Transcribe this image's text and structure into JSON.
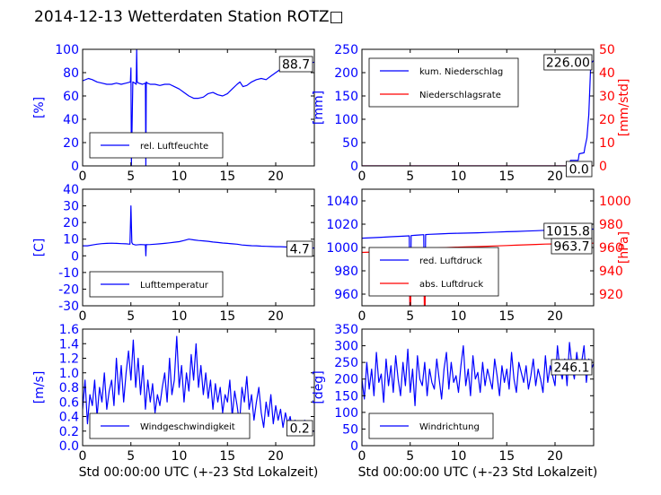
{
  "figure": {
    "title": "2014-12-13 Wetterdaten Station ROTZ□"
  },
  "colors": {
    "primary": "#0000ff",
    "secondary": "#ff0000",
    "axis": "#000000"
  },
  "chart_data": [
    {
      "type": "line",
      "xlim": [
        0,
        24
      ],
      "xticks": [
        0,
        5,
        10,
        15,
        20
      ],
      "ylim": [
        0,
        100
      ],
      "yticks": [
        0,
        20,
        40,
        60,
        80,
        100
      ],
      "ylabel": "[%]",
      "xlabel": "",
      "legend_position": "lower-left",
      "end_label": "88.7",
      "series": [
        {
          "name": "rel. Luftfeuchte",
          "color": "#0000ff",
          "x": [
            0,
            0.6,
            1,
            1.5,
            2,
            2.5,
            3,
            3.5,
            4,
            4.5,
            4.95,
            5.0,
            5.05,
            5.2,
            5.4,
            5.55,
            5.6,
            5.65,
            5.8,
            6.2,
            6.5,
            6.55,
            6.6,
            6.7,
            7,
            7.5,
            8,
            8.5,
            9,
            9.5,
            10,
            10.5,
            11,
            11.5,
            12,
            12.5,
            13,
            13.5,
            14,
            14.5,
            15,
            15.5,
            16,
            16.3,
            16.6,
            17,
            17.5,
            18,
            18.5,
            19,
            19.5,
            20,
            20.5,
            21,
            21.5,
            22,
            22.5,
            23,
            23.5,
            24
          ],
          "y": [
            73,
            75,
            74,
            72,
            71,
            70,
            70,
            71,
            70,
            71,
            72,
            84,
            0,
            72,
            71,
            70,
            100,
            72,
            71,
            70,
            71,
            0,
            72,
            71,
            70,
            70,
            69,
            70,
            70,
            68,
            66,
            63,
            60,
            58,
            58,
            59,
            62,
            63,
            61,
            60,
            62,
            66,
            70,
            72,
            68,
            69,
            72,
            74,
            75,
            74,
            77,
            80,
            83,
            84,
            86,
            86,
            87,
            88,
            88,
            89
          ]
        }
      ]
    },
    {
      "type": "line",
      "xlim": [
        0,
        24
      ],
      "xticks": [
        0,
        5,
        10,
        15,
        20
      ],
      "ylim": [
        0,
        250
      ],
      "yticks": [
        0,
        50,
        100,
        150,
        200,
        250
      ],
      "ylim_right": [
        0,
        50
      ],
      "yticks_right": [
        0,
        10,
        20,
        30,
        40,
        50
      ],
      "ylabel": "[mm]",
      "ylabel_right": "[mm/std]",
      "xlabel": "",
      "legend_position": "upper-left",
      "end_label": "226.00",
      "end_label_right": "0.0",
      "series": [
        {
          "name": "kum. Niederschlag",
          "color": "#0000ff",
          "axis": "left",
          "x": [
            0,
            21.5,
            21.6,
            22,
            22.4,
            22.5,
            23,
            23.1,
            23.3,
            23.5,
            23.7,
            24
          ],
          "y": [
            0,
            0,
            12,
            12,
            12,
            26,
            28,
            40,
            60,
            110,
            220,
            226
          ]
        },
        {
          "name": "Niederschlagsrate",
          "color": "#ff0000",
          "axis": "right",
          "x": [
            0,
            24
          ],
          "y": [
            0,
            0
          ]
        }
      ]
    },
    {
      "type": "line",
      "xlim": [
        0,
        24
      ],
      "xticks": [
        0,
        5,
        10,
        15,
        20
      ],
      "ylim": [
        -30,
        40
      ],
      "yticks": [
        -30,
        -20,
        -10,
        0,
        10,
        20,
        30,
        40
      ],
      "ylabel": "[C]",
      "xlabel": "",
      "legend_position": "lower-left",
      "end_label": "4.7",
      "series": [
        {
          "name": "Lufttemperatur",
          "color": "#0000ff",
          "x": [
            0,
            0.5,
            1,
            1.5,
            2,
            2.5,
            3,
            3.5,
            4,
            4.5,
            4.9,
            5.0,
            5.1,
            5.2,
            5.5,
            6,
            6.5,
            6.55,
            6.6,
            6.7,
            7,
            7.5,
            8,
            8.5,
            9,
            9.5,
            10,
            10.5,
            11,
            11.5,
            12,
            12.5,
            13,
            13.5,
            14,
            14.5,
            15,
            15.5,
            16,
            16.5,
            17,
            17.5,
            18,
            18.5,
            19,
            19.5,
            20,
            20.5,
            21,
            21.5,
            22,
            22.5,
            23,
            23.5,
            24
          ],
          "y": [
            6,
            6,
            6.5,
            7,
            7.3,
            7.5,
            7.6,
            7.5,
            7.3,
            7.2,
            7,
            30,
            8,
            7,
            6.5,
            6.8,
            6.6,
            0,
            6.8,
            6.7,
            6.8,
            7,
            7.2,
            7.5,
            7.8,
            8.2,
            8.5,
            9.2,
            10,
            9.6,
            9.2,
            9,
            8.7,
            8.3,
            8,
            7.7,
            7.5,
            7.2,
            7,
            6.5,
            6.3,
            6.1,
            6,
            5.8,
            5.7,
            5.6,
            5.5,
            5.5,
            5.3,
            5.2,
            5.1,
            5,
            4.9,
            4.8,
            4.7
          ]
        }
      ]
    },
    {
      "type": "line",
      "xlim": [
        0,
        24
      ],
      "xticks": [
        0,
        5,
        10,
        15,
        20
      ],
      "ylim": [
        950,
        1050
      ],
      "yticks": [
        960,
        980,
        1000,
        1020,
        1040
      ],
      "ylim_right": [
        910,
        1010
      ],
      "yticks_right": [
        920,
        940,
        960,
        980,
        1000
      ],
      "ylabel": "",
      "ylabel_right": "[hPa]",
      "xlabel": "",
      "legend_position": "lower-left",
      "end_label": "1015.8",
      "end_label_right": "963.7",
      "series": [
        {
          "name": "red. Luftdruck",
          "color": "#0000ff",
          "axis": "left",
          "x": [
            0,
            1,
            2,
            3,
            4,
            4.9,
            5.0,
            5.1,
            5.5,
            6,
            6.4,
            6.5,
            6.6,
            7,
            8,
            9,
            10,
            11,
            12,
            13,
            14,
            15,
            16,
            17,
            18,
            19,
            20,
            21,
            22,
            23,
            24
          ],
          "y": [
            1008,
            1008.4,
            1008.8,
            1009.2,
            1009.6,
            1010,
            930,
            1010.2,
            1010.5,
            1010.8,
            1011,
            930,
            1011.1,
            1011.3,
            1011.6,
            1012,
            1012.2,
            1012.4,
            1012.6,
            1012.9,
            1013.2,
            1013.5,
            1013.8,
            1014.1,
            1014.4,
            1014.8,
            1015.1,
            1015.4,
            1015.6,
            1015.7,
            1015.8
          ]
        },
        {
          "name": "abs. Luftdruck",
          "color": "#ff0000",
          "axis": "right",
          "x": [
            0,
            1,
            2,
            3,
            4,
            4.9,
            5.0,
            5.1,
            5.5,
            6,
            6.4,
            6.5,
            6.6,
            7,
            8,
            9,
            10,
            11,
            12,
            13,
            14,
            15,
            16,
            17,
            18,
            19,
            20,
            21,
            22,
            23,
            24
          ],
          "y": [
            955.8,
            956.1,
            956.4,
            956.8,
            957.1,
            957.4,
            880,
            957.6,
            958,
            958.4,
            958.7,
            880,
            958.8,
            959.2,
            959.6,
            960,
            960.3,
            960.6,
            960.8,
            961.1,
            961.4,
            961.7,
            962,
            962.3,
            962.6,
            962.9,
            963.1,
            963.3,
            963.5,
            963.6,
            963.7
          ]
        }
      ]
    },
    {
      "type": "line",
      "xlim": [
        0,
        24
      ],
      "xticks": [
        0,
        5,
        10,
        15,
        20
      ],
      "ylim": [
        0,
        1.6
      ],
      "yticks": [
        0.0,
        0.2,
        0.4,
        0.6,
        0.8,
        1.0,
        1.2,
        1.4,
        1.6
      ],
      "ylabel": "[m/s]",
      "xlabel": "Std 00:00:00 UTC (+-23 Std Lokalzeit)",
      "legend_position": "lower-left",
      "end_label": "0.2",
      "series": [
        {
          "name": "Windgeschwindigkeit",
          "color": "#0000ff",
          "x": [
            0,
            0.25,
            0.5,
            0.75,
            1,
            1.25,
            1.5,
            1.75,
            2,
            2.25,
            2.5,
            2.75,
            3,
            3.25,
            3.5,
            3.75,
            4,
            4.25,
            4.5,
            4.75,
            5,
            5.25,
            5.5,
            5.75,
            6,
            6.25,
            6.5,
            6.75,
            7,
            7.25,
            7.5,
            7.75,
            8,
            8.25,
            8.5,
            8.75,
            9,
            9.25,
            9.5,
            9.75,
            10,
            10.25,
            10.5,
            10.75,
            11,
            11.25,
            11.5,
            11.75,
            12,
            12.25,
            12.5,
            12.75,
            13,
            13.25,
            13.5,
            13.75,
            14,
            14.25,
            14.5,
            14.75,
            15,
            15.25,
            15.5,
            15.75,
            16,
            16.25,
            16.5,
            16.75,
            17,
            17.25,
            17.5,
            17.75,
            18,
            18.25,
            18.5,
            18.75,
            19,
            19.25,
            19.5,
            19.75,
            20,
            20.25,
            20.5,
            20.75,
            21,
            21.25,
            21.5,
            21.75,
            22,
            22.25,
            22.5,
            22.75,
            23,
            23.25,
            23.5,
            23.75,
            24
          ],
          "y": [
            0.5,
            0.9,
            0.3,
            0.7,
            0.55,
            0.9,
            0.4,
            0.8,
            0.6,
            1.0,
            0.5,
            0.75,
            0.9,
            0.55,
            1.2,
            0.7,
            1.1,
            0.6,
            1.0,
            1.3,
            0.9,
            1.45,
            0.8,
            1.2,
            0.7,
            1.1,
            0.5,
            0.9,
            0.6,
            0.85,
            0.45,
            0.7,
            0.55,
            0.8,
            1.0,
            0.6,
            1.2,
            0.7,
            0.9,
            1.5,
            0.8,
            1.1,
            0.6,
            1.0,
            0.75,
            1.25,
            0.9,
            1.4,
            0.8,
            1.1,
            0.7,
            1.0,
            0.65,
            0.9,
            0.5,
            0.85,
            0.6,
            0.8,
            0.45,
            0.7,
            0.6,
            0.9,
            0.4,
            0.75,
            0.55,
            0.3,
            0.8,
            0.6,
            0.95,
            0.5,
            0.7,
            0.35,
            0.6,
            0.8,
            0.45,
            0.25,
            0.6,
            0.4,
            0.7,
            0.3,
            0.55,
            0.35,
            0.5,
            0.25,
            0.45,
            0.3,
            0.4,
            0.2,
            0.35,
            0.25,
            0.3,
            0.15,
            0.35,
            0.25,
            0.3,
            0.2,
            0.2
          ]
        }
      ]
    },
    {
      "type": "line",
      "xlim": [
        0,
        24
      ],
      "xticks": [
        0,
        5,
        10,
        15,
        20
      ],
      "ylim": [
        0,
        350
      ],
      "yticks": [
        0,
        50,
        100,
        150,
        200,
        250,
        300,
        350
      ],
      "ylabel": "[deg]",
      "xlabel": "Std 00:00:00 UTC (+-23 Std Lokalzeit)",
      "legend_position": "lower-left",
      "end_label": "246.1",
      "series": [
        {
          "name": "Windrichtung",
          "color": "#0000ff",
          "x": [
            0,
            0.25,
            0.5,
            0.75,
            1,
            1.25,
            1.5,
            1.75,
            2,
            2.25,
            2.5,
            2.75,
            3,
            3.25,
            3.5,
            3.75,
            4,
            4.25,
            4.5,
            4.75,
            5,
            5.25,
            5.5,
            5.75,
            6,
            6.25,
            6.5,
            6.75,
            7,
            7.25,
            7.5,
            7.75,
            8,
            8.25,
            8.5,
            8.75,
            9,
            9.25,
            9.5,
            9.75,
            10,
            10.25,
            10.5,
            10.75,
            11,
            11.25,
            11.5,
            11.75,
            12,
            12.25,
            12.5,
            12.75,
            13,
            13.25,
            13.5,
            13.75,
            14,
            14.25,
            14.5,
            14.75,
            15,
            15.25,
            15.5,
            15.75,
            16,
            16.25,
            16.5,
            16.75,
            17,
            17.25,
            17.5,
            17.75,
            18,
            18.25,
            18.5,
            18.75,
            19,
            19.25,
            19.5,
            19.75,
            20,
            20.25,
            20.5,
            20.75,
            21,
            21.25,
            21.5,
            21.75,
            22,
            22.25,
            22.5,
            22.75,
            23,
            23.25,
            23.5,
            23.75,
            24
          ],
          "y": [
            200,
            140,
            250,
            170,
            230,
            150,
            280,
            190,
            215,
            130,
            260,
            180,
            240,
            160,
            270,
            200,
            150,
            250,
            180,
            290,
            160,
            230,
            120,
            270,
            200,
            180,
            250,
            150,
            230,
            190,
            170,
            260,
            200,
            140,
            230,
            280,
            170,
            250,
            190,
            210,
            160,
            240,
            300,
            180,
            230,
            150,
            270,
            200,
            220,
            160,
            250,
            180,
            230,
            200,
            170,
            260,
            210,
            150,
            240,
            190,
            230,
            170,
            280,
            200,
            160,
            250,
            220,
            190,
            240,
            170,
            210,
            260,
            180,
            230,
            200,
            160,
            270,
            190,
            240,
            210,
            180,
            300,
            230,
            200,
            260,
            180,
            310,
            240,
            200,
            280,
            220,
            250,
            300,
            190,
            260,
            230,
            246
          ]
        }
      ]
    }
  ]
}
